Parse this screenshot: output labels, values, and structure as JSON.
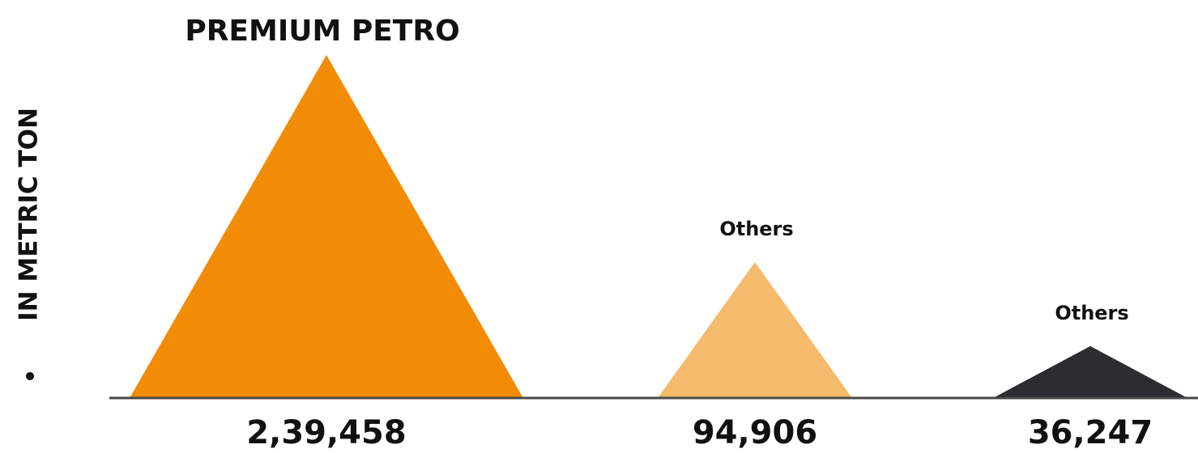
{
  "chart_data": {
    "type": "bar",
    "shape": "triangle",
    "ylabel": "IN METRIC TON",
    "categories": [
      "PREMIUM PETRO",
      "Others",
      "Others"
    ],
    "values": [
      239458,
      94906,
      36247
    ],
    "value_labels": [
      "2,39,458",
      "94,906",
      "36,247"
    ],
    "colors": [
      "#f28c06",
      "#f5ba6b",
      "#2d2c31"
    ],
    "baseline_color": "#4a4a4a",
    "grid": false,
    "legend": "none"
  }
}
